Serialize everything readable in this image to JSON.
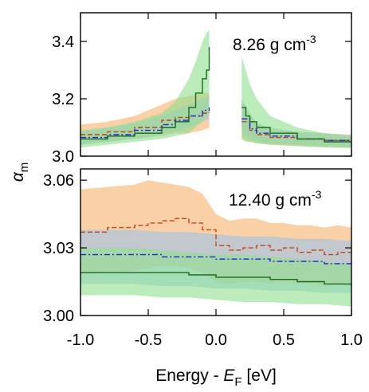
{
  "chart_data": {
    "type": "line",
    "xlabel": {
      "main": "Energy - ",
      "var": "E",
      "sub": "F",
      "unit": " [eV]"
    },
    "ylabel": {
      "var": "α",
      "sub": "m"
    },
    "x_ticks": [
      "-1.0",
      "-0.5",
      "0.0",
      "0.5",
      "1.0"
    ],
    "x_tick_values": [
      -1.0,
      -0.5,
      0.0,
      0.5,
      1.0
    ],
    "xlim": [
      -1.0,
      1.0
    ],
    "colors": {
      "orange_line": "#c0451a",
      "orange_band": "#f7b06a",
      "blue_line": "#1f24d6",
      "blue_band": "#9cc3ea",
      "green_line": "#1b6b1b",
      "green_band": "#8fe08f"
    },
    "panels": [
      {
        "annotation": {
          "text": "8.26 g cm",
          "sup": "-3"
        },
        "ylim": [
          3.0,
          3.5
        ],
        "y_ticks": [
          "3.0",
          "3.2",
          "3.4"
        ],
        "y_tick_values": [
          3.0,
          3.2,
          3.4
        ],
        "gap": [
          -0.03,
          0.17
        ],
        "series": [
          {
            "style": "dashed",
            "color_key": "orange",
            "x": [
              -1.0,
              -0.8,
              -0.6,
              -0.4,
              -0.3,
              -0.2,
              -0.1,
              -0.05,
              0.19,
              0.25,
              0.3,
              0.4,
              0.6,
              0.8,
              1.0
            ],
            "y": [
              3.075,
              3.085,
              3.1,
              3.125,
              3.135,
              3.14,
              3.15,
              3.155,
              3.12,
              3.09,
              3.075,
              3.065,
              3.06,
              3.055,
              3.052
            ],
            "lo": [
              3.04,
              3.05,
              3.06,
              3.07,
              3.08,
              3.08,
              3.09,
              3.1,
              3.06,
              3.05,
              3.045,
              3.04,
              3.035,
              3.032,
              3.03
            ],
            "hi": [
              3.11,
              3.12,
              3.14,
              3.18,
              3.2,
              3.21,
              3.22,
              3.22,
              3.19,
              3.14,
              3.11,
              3.095,
              3.085,
              3.08,
              3.075
            ]
          },
          {
            "style": "dashdot",
            "color_key": "blue",
            "x": [
              -1.0,
              -0.8,
              -0.6,
              -0.4,
              -0.3,
              -0.2,
              -0.1,
              -0.05,
              0.19,
              0.25,
              0.3,
              0.4,
              0.6,
              0.8,
              1.0
            ],
            "y": [
              3.065,
              3.075,
              3.09,
              3.11,
              3.125,
              3.14,
              3.16,
              3.17,
              3.13,
              3.095,
              3.08,
              3.07,
              3.06,
              3.055,
              3.05
            ],
            "lo": [
              3.04,
              3.05,
              3.06,
              3.075,
              3.085,
              3.1,
              3.12,
              3.13,
              3.08,
              3.06,
              3.05,
              3.045,
              3.04,
              3.035,
              3.032
            ],
            "hi": [
              3.085,
              3.1,
              3.115,
              3.14,
              3.16,
              3.18,
              3.2,
              3.21,
              3.2,
              3.15,
              3.115,
              3.1,
              3.085,
              3.08,
              3.072
            ]
          },
          {
            "style": "solid",
            "color_key": "green",
            "x": [
              -1.0,
              -0.8,
              -0.6,
              -0.4,
              -0.3,
              -0.2,
              -0.15,
              -0.1,
              -0.07,
              -0.05,
              0.19,
              0.22,
              0.25,
              0.3,
              0.4,
              0.6,
              0.8,
              1.0
            ],
            "y": [
              3.06,
              3.07,
              3.08,
              3.1,
              3.12,
              3.17,
              3.22,
              3.27,
              3.3,
              3.38,
              3.17,
              3.14,
              3.12,
              3.1,
              3.08,
              3.06,
              3.05,
              3.045
            ],
            "lo": [
              3.03,
              3.04,
              3.05,
              3.06,
              3.07,
              3.08,
              3.1,
              3.12,
              3.14,
              3.15,
              3.06,
              3.05,
              3.05,
              3.045,
              3.04,
              3.035,
              3.03,
              3.028
            ],
            "hi": [
              3.09,
              3.1,
              3.12,
              3.15,
              3.19,
              3.27,
              3.33,
              3.4,
              3.43,
              3.44,
              3.35,
              3.3,
              3.25,
              3.2,
              3.14,
              3.1,
              3.08,
              3.07
            ]
          }
        ]
      },
      {
        "annotation": {
          "text": "12.40 g cm",
          "sup": "-3"
        },
        "ylim": [
          3.0,
          3.065
        ],
        "y_ticks": [
          "3.00",
          "3.03",
          "3.06"
        ],
        "y_tick_values": [
          3.0,
          3.03,
          3.06
        ],
        "series": [
          {
            "style": "dashed",
            "color_key": "orange",
            "x": [
              -1.0,
              -0.8,
              -0.6,
              -0.5,
              -0.4,
              -0.3,
              -0.2,
              -0.1,
              0.0,
              0.1,
              0.2,
              0.3,
              0.4,
              0.5,
              0.6,
              0.7,
              0.8,
              0.9,
              1.0
            ],
            "y": [
              3.037,
              3.039,
              3.04,
              3.041,
              3.042,
              3.043,
              3.041,
              3.038,
              3.031,
              3.029,
              3.03,
              3.031,
              3.029,
              3.03,
              3.028,
              3.029,
              3.027,
              3.028,
              3.027
            ],
            "lo": [
              3.018,
              3.019,
              3.02,
              3.021,
              3.022,
              3.022,
              3.021,
              3.019,
              3.015,
              3.014,
              3.015,
              3.015,
              3.014,
              3.015,
              3.014,
              3.014,
              3.013,
              3.014,
              3.013
            ],
            "hi": [
              3.056,
              3.057,
              3.058,
              3.06,
              3.059,
              3.058,
              3.057,
              3.054,
              3.045,
              3.042,
              3.043,
              3.043,
              3.041,
              3.041,
              3.04,
              3.04,
              3.039,
              3.04,
              3.039
            ]
          },
          {
            "style": "dashdot",
            "color_key": "blue",
            "x": [
              -1.0,
              -0.8,
              -0.6,
              -0.4,
              -0.2,
              0.0,
              0.2,
              0.4,
              0.6,
              0.8,
              1.0
            ],
            "y": [
              3.027,
              3.027,
              3.027,
              3.026,
              3.026,
              3.025,
              3.025,
              3.024,
              3.024,
              3.023,
              3.023
            ],
            "lo": [
              3.014,
              3.014,
              3.014,
              3.013,
              3.013,
              3.012,
              3.012,
              3.011,
              3.011,
              3.01,
              3.01
            ],
            "hi": [
              3.038,
              3.038,
              3.038,
              3.037,
              3.037,
              3.036,
              3.035,
              3.035,
              3.034,
              3.034,
              3.033
            ]
          },
          {
            "style": "solid",
            "color_key": "green",
            "x": [
              -1.0,
              -0.8,
              -0.6,
              -0.4,
              -0.2,
              0.0,
              0.2,
              0.4,
              0.6,
              0.8,
              1.0
            ],
            "y": [
              3.019,
              3.019,
              3.019,
              3.019,
              3.018,
              3.017,
              3.017,
              3.016,
              3.015,
              3.014,
              3.013
            ],
            "lo": [
              3.009,
              3.009,
              3.009,
              3.008,
              3.008,
              3.007,
              3.006,
              3.006,
              3.005,
              3.005,
              3.004
            ],
            "hi": [
              3.03,
              3.03,
              3.03,
              3.029,
              3.028,
              3.027,
              3.027,
              3.026,
              3.025,
              3.024,
              3.023
            ]
          }
        ]
      }
    ]
  }
}
